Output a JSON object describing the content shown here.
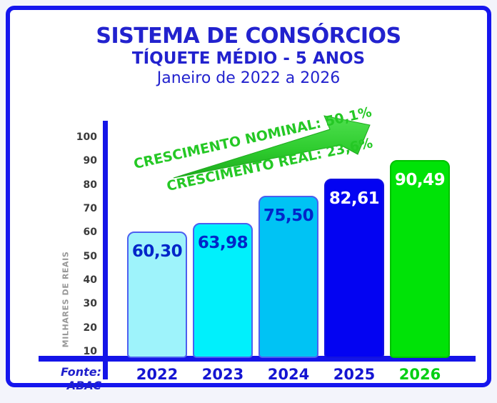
{
  "header": {
    "title": "SISTEMA DE CONSÓRCIOS",
    "subtitle": "TÍQUETE MÉDIO - 5 ANOS",
    "period": "Janeiro de 2022 a 2026"
  },
  "chart_data": {
    "type": "bar",
    "title": "SISTEMA DE CONSÓRCIOS - TÍQUETE MÉDIO - 5 ANOS - Janeiro de 2022 a 2026",
    "categories": [
      "2022",
      "2023",
      "2024",
      "2025",
      "2026"
    ],
    "values": [
      60.3,
      63.98,
      75.5,
      82.61,
      90.49
    ],
    "value_labels": [
      "60,30",
      "63,98",
      "75,50",
      "82,61",
      "90,49"
    ],
    "xlabel": "",
    "ylabel": "MILHARES DE REAIS",
    "yticks": [
      10,
      20,
      30,
      40,
      50,
      60,
      70,
      80,
      90,
      100
    ],
    "ylim": [
      7,
      105
    ],
    "grid": false,
    "legend": false,
    "bar_colors": [
      "#9ef3fb",
      "#00f0fc",
      "#00c3f4",
      "#0303f2",
      "#00e307"
    ],
    "bar_border_colors": [
      "#4d5ff0",
      "#4d5ff0",
      "#4d5ff0",
      "#1212e0",
      "#00c000"
    ],
    "value_label_colors": [
      "#0226c9",
      "#0226c9",
      "#0226c9",
      "#ffffff",
      "#ffffff"
    ],
    "category_colors": [
      "#1414d2",
      "#1414d2",
      "#1414d2",
      "#1414d2",
      "#00cf12"
    ],
    "annotations": {
      "nominal": "CRESCIMENTO NOMINAL: 50,1%",
      "real": "CRESCIMENTO REAL: 23,6%"
    },
    "source": "Fonte: ABAC"
  },
  "colors": {
    "frame_border": "#1515ee",
    "axis": "#1414e8",
    "title_blue": "#2222ce",
    "annotation_green": "#25c825",
    "arrow_green": "#2ecc2e"
  }
}
